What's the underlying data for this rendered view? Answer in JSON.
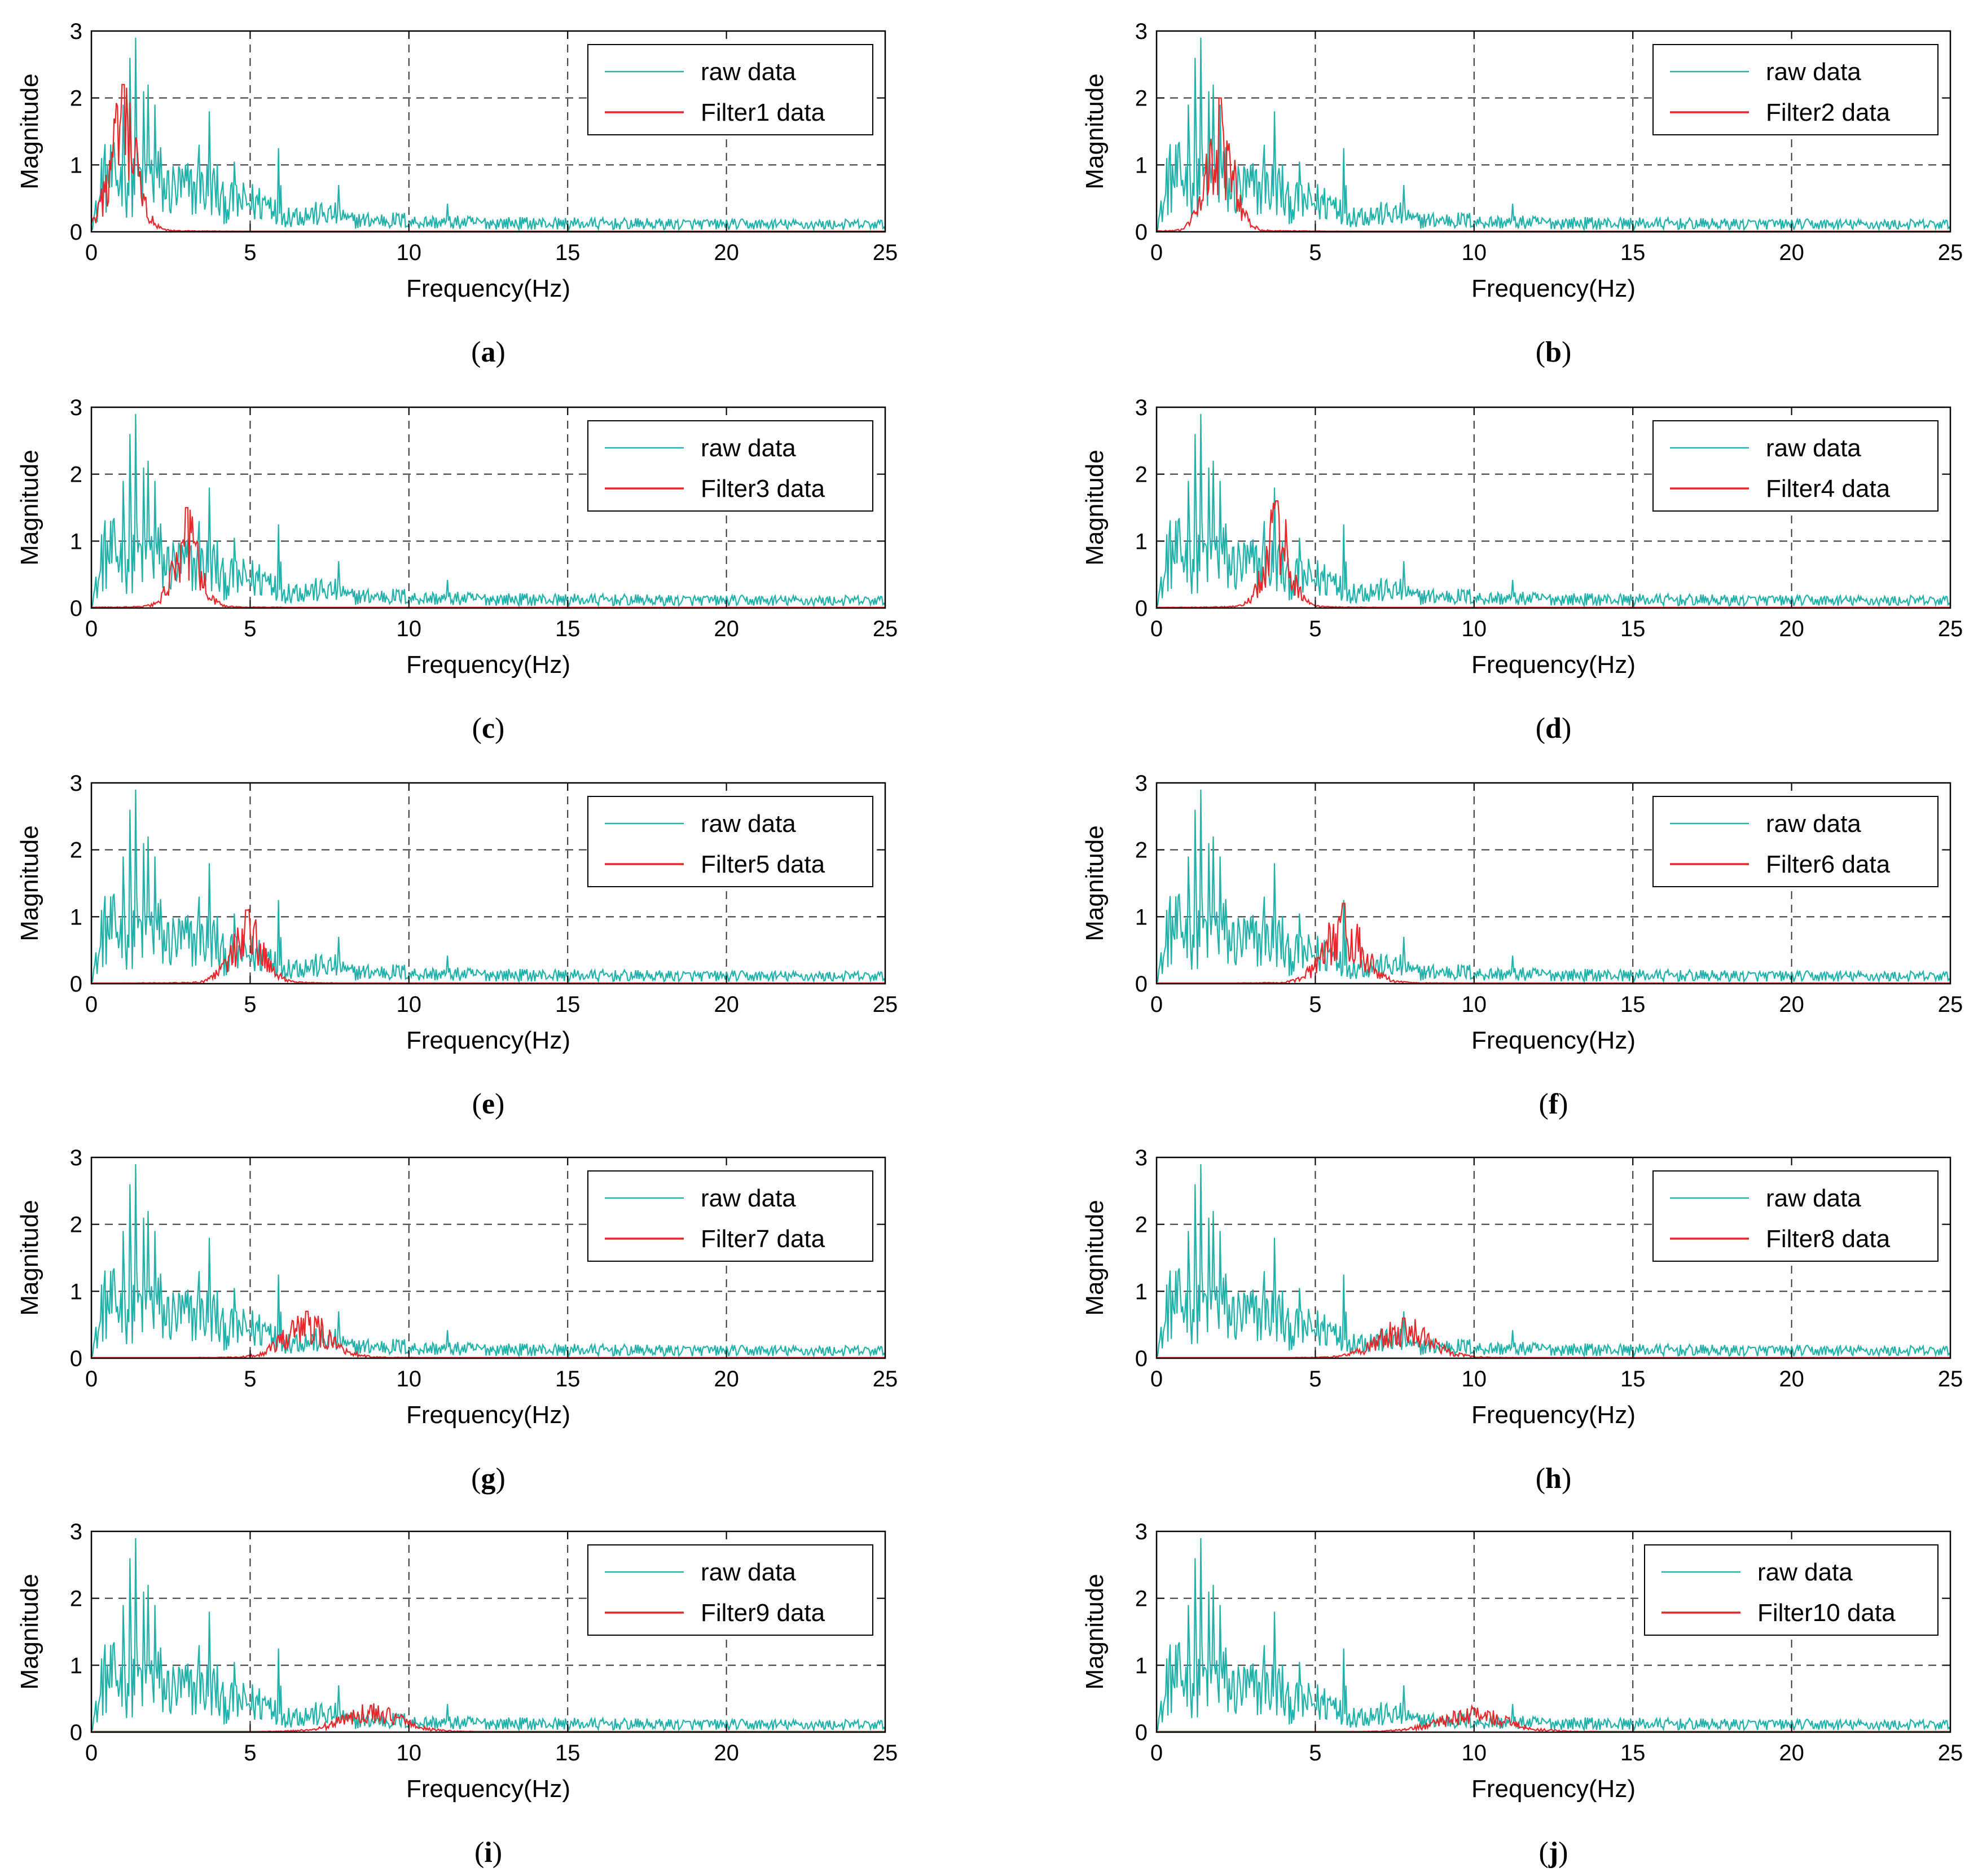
{
  "colors": {
    "raw": "#20b2aa",
    "filtered": "#e8262a",
    "grid": "#333333",
    "axis": "#000000"
  },
  "chart_data": [
    {
      "type": "line",
      "caption": "a",
      "title": "",
      "xlabel": "Frequency(Hz)",
      "ylabel": "Magnitude",
      "xlim": [
        0,
        25
      ],
      "ylim": [
        0,
        3
      ],
      "xticks": [
        "0",
        "5",
        "10",
        "15",
        "20",
        "25"
      ],
      "yticks": [
        "0",
        "1",
        "2",
        "3"
      ],
      "grid": true,
      "legend_position": "top-right",
      "series": [
        {
          "name": "raw data",
          "peak_hz": 1.4,
          "peak_magnitude": 2.9
        },
        {
          "name": "Filter1 data",
          "center_hz": 1.0,
          "peak_magnitude": 2.2
        }
      ]
    },
    {
      "type": "line",
      "caption": "b",
      "title": "",
      "xlabel": "Frequency(Hz)",
      "ylabel": "Magnitude",
      "xlim": [
        0,
        25
      ],
      "ylim": [
        0,
        3
      ],
      "xticks": [
        "0",
        "5",
        "10",
        "15",
        "20",
        "25"
      ],
      "yticks": [
        "0",
        "1",
        "2",
        "3"
      ],
      "grid": true,
      "legend_position": "top-right",
      "series": [
        {
          "name": "raw data",
          "peak_hz": 1.4,
          "peak_magnitude": 2.9
        },
        {
          "name": "Filter2 data",
          "center_hz": 2.0,
          "peak_magnitude": 2.0
        }
      ]
    },
    {
      "type": "line",
      "caption": "c",
      "title": "",
      "xlabel": "Frequency(Hz)",
      "ylabel": "Magnitude",
      "xlim": [
        0,
        25
      ],
      "ylim": [
        0,
        3
      ],
      "xticks": [
        "0",
        "5",
        "10",
        "15",
        "20",
        "25"
      ],
      "yticks": [
        "0",
        "1",
        "2",
        "3"
      ],
      "grid": true,
      "legend_position": "top-right",
      "series": [
        {
          "name": "raw data",
          "peak_hz": 1.4,
          "peak_magnitude": 2.9
        },
        {
          "name": "Filter3 data",
          "center_hz": 3.0,
          "peak_magnitude": 1.5
        }
      ]
    },
    {
      "type": "line",
      "caption": "d",
      "title": "",
      "xlabel": "Frequency(Hz)",
      "ylabel": "Magnitude",
      "xlim": [
        0,
        25
      ],
      "ylim": [
        0,
        3
      ],
      "xticks": [
        "0",
        "5",
        "10",
        "15",
        "20",
        "25"
      ],
      "yticks": [
        "0",
        "1",
        "2",
        "3"
      ],
      "grid": true,
      "legend_position": "top-right",
      "series": [
        {
          "name": "raw data",
          "peak_hz": 1.4,
          "peak_magnitude": 2.9
        },
        {
          "name": "Filter4 data",
          "center_hz": 3.8,
          "peak_magnitude": 1.6
        }
      ]
    },
    {
      "type": "line",
      "caption": "e",
      "title": "",
      "xlabel": "Frequency(Hz)",
      "ylabel": "Magnitude",
      "xlim": [
        0,
        25
      ],
      "ylim": [
        0,
        3
      ],
      "xticks": [
        "0",
        "5",
        "10",
        "15",
        "20",
        "25"
      ],
      "yticks": [
        "0",
        "1",
        "2",
        "3"
      ],
      "grid": true,
      "legend_position": "top-right",
      "series": [
        {
          "name": "raw data",
          "peak_hz": 1.4,
          "peak_magnitude": 2.9
        },
        {
          "name": "Filter5 data",
          "center_hz": 4.9,
          "peak_magnitude": 1.1
        }
      ]
    },
    {
      "type": "line",
      "caption": "f",
      "title": "",
      "xlabel": "Frequency(Hz)",
      "ylabel": "Magnitude",
      "xlim": [
        0,
        25
      ],
      "ylim": [
        0,
        3
      ],
      "xticks": [
        "0",
        "5",
        "10",
        "15",
        "20",
        "25"
      ],
      "yticks": [
        "0",
        "1",
        "2",
        "3"
      ],
      "grid": true,
      "legend_position": "top-right",
      "series": [
        {
          "name": "raw data",
          "peak_hz": 1.4,
          "peak_magnitude": 2.9
        },
        {
          "name": "Filter6 data",
          "center_hz": 5.9,
          "peak_magnitude": 1.2
        }
      ]
    },
    {
      "type": "line",
      "caption": "g",
      "title": "",
      "xlabel": "Frequency(Hz)",
      "ylabel": "Magnitude",
      "xlim": [
        0,
        25
      ],
      "ylim": [
        0,
        3
      ],
      "xticks": [
        "0",
        "5",
        "10",
        "15",
        "20",
        "25"
      ],
      "yticks": [
        "0",
        "1",
        "2",
        "3"
      ],
      "grid": true,
      "legend_position": "top-right",
      "series": [
        {
          "name": "raw data",
          "peak_hz": 1.4,
          "peak_magnitude": 2.9
        },
        {
          "name": "Filter7 data",
          "center_hz": 6.8,
          "peak_magnitude": 0.7
        }
      ]
    },
    {
      "type": "line",
      "caption": "h",
      "title": "",
      "xlabel": "Frequency(Hz)",
      "ylabel": "Magnitude",
      "xlim": [
        0,
        25
      ],
      "ylim": [
        0,
        3
      ],
      "xticks": [
        "0",
        "5",
        "10",
        "15",
        "20",
        "25"
      ],
      "yticks": [
        "0",
        "1",
        "2",
        "3"
      ],
      "grid": true,
      "legend_position": "top-right",
      "series": [
        {
          "name": "raw data",
          "peak_hz": 1.4,
          "peak_magnitude": 2.9
        },
        {
          "name": "Filter8 data",
          "center_hz": 7.8,
          "peak_magnitude": 0.6
        }
      ]
    },
    {
      "type": "line",
      "caption": "i",
      "title": "",
      "xlabel": "Frequency(Hz)",
      "ylabel": "Magnitude",
      "xlim": [
        0,
        25
      ],
      "ylim": [
        0,
        3
      ],
      "xticks": [
        "0",
        "5",
        "10",
        "15",
        "20",
        "25"
      ],
      "yticks": [
        "0",
        "1",
        "2",
        "3"
      ],
      "grid": true,
      "legend_position": "top-right",
      "series": [
        {
          "name": "raw data",
          "peak_hz": 1.4,
          "peak_magnitude": 2.9
        },
        {
          "name": "Filter9 data",
          "center_hz": 8.8,
          "peak_magnitude": 0.4
        }
      ]
    },
    {
      "type": "line",
      "caption": "j",
      "title": "",
      "xlabel": "Frequency(Hz)",
      "ylabel": "Magnitude",
      "xlim": [
        0,
        25
      ],
      "ylim": [
        0,
        3
      ],
      "xticks": [
        "0",
        "5",
        "10",
        "15",
        "20",
        "25"
      ],
      "yticks": [
        "0",
        "1",
        "2",
        "3"
      ],
      "grid": true,
      "legend_position": "top-right",
      "series": [
        {
          "name": "raw data",
          "peak_hz": 1.4,
          "peak_magnitude": 2.9
        },
        {
          "name": "Filter10 data",
          "center_hz": 10.0,
          "peak_magnitude": 0.35
        }
      ]
    }
  ]
}
